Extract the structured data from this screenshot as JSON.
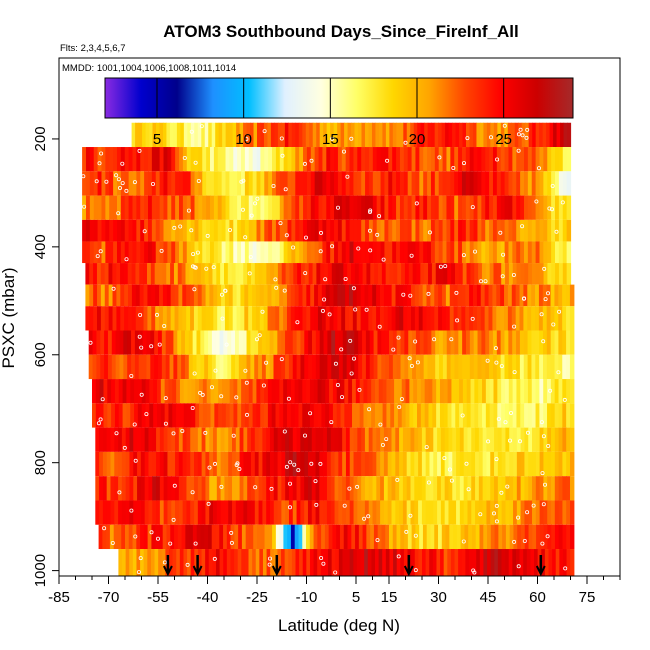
{
  "chart_data": {
    "type": "heatmap",
    "title": "ATOM3 Southbound Days_Since_FireInf_All",
    "flights_label": "Flts: 2,3,4,5,6,7",
    "mmdd_label": "MMDD: 1001,1004,1006,1008,1011,1014",
    "xlabel": "Latitude (deg N)",
    "ylabel": "PSXC (mbar)",
    "xlim": [
      -85,
      85
    ],
    "ylim": [
      1010,
      50
    ],
    "x_ticks": [
      -85,
      -70,
      -55,
      -40,
      -25,
      -10,
      5,
      15,
      30,
      45,
      60,
      75
    ],
    "y_ticks": [
      200,
      400,
      600,
      800,
      1000
    ],
    "colorbar": {
      "range": [
        2,
        29
      ],
      "ticks": [
        5,
        10,
        15,
        20,
        25
      ],
      "colors": [
        "#8a2be2",
        "#0000cd",
        "#00008b",
        "#1e90ff",
        "#00bfff",
        "#e0f0ff",
        "#ffffe0",
        "#ffff66",
        "#ffd700",
        "#ffa500",
        "#ff4500",
        "#ff0000",
        "#cc0000",
        "#a52a2a"
      ]
    },
    "arrows_latitude": [
      -52,
      -43,
      -19,
      21,
      61
    ],
    "layers": [
      {
        "p_top": 170,
        "p_bot": 215,
        "lat_min": -63,
        "lat_max": 70,
        "values": [
          20,
          18,
          17,
          16,
          19,
          21,
          23,
          24,
          22,
          20,
          21,
          22,
          21,
          23,
          24,
          25,
          22,
          21,
          22,
          24,
          27
        ]
      },
      {
        "p_top": 215,
        "p_bot": 260,
        "lat_min": -78,
        "lat_max": 70,
        "values": [
          23,
          25,
          24,
          26,
          19,
          17,
          15,
          14,
          18,
          22,
          24,
          23,
          25,
          24,
          23,
          22,
          24,
          25,
          23,
          22,
          18
        ]
      },
      {
        "p_top": 260,
        "p_bot": 305,
        "lat_min": -78,
        "lat_max": 70,
        "values": [
          24,
          22,
          21,
          25,
          23,
          18,
          17,
          19,
          22,
          25,
          26,
          24,
          23,
          25,
          22,
          24,
          26,
          24,
          22,
          21,
          14
        ]
      },
      {
        "p_top": 305,
        "p_bot": 350,
        "lat_min": -78,
        "lat_max": 70,
        "values": [
          20,
          22,
          24,
          23,
          22,
          21,
          17,
          16,
          20,
          24,
          25,
          26,
          25,
          23,
          24,
          23,
          22,
          24,
          25,
          20,
          18
        ]
      },
      {
        "p_top": 350,
        "p_bot": 390,
        "lat_min": -78,
        "lat_max": 70,
        "values": [
          24,
          26,
          24,
          22,
          20,
          19,
          18,
          21,
          23,
          25,
          26,
          24,
          22,
          23,
          22,
          23,
          24,
          22,
          21,
          20,
          19
        ]
      },
      {
        "p_top": 390,
        "p_bot": 430,
        "lat_min": -78,
        "lat_max": 70,
        "values": [
          22,
          24,
          25,
          23,
          20,
          18,
          16,
          15,
          17,
          21,
          24,
          26,
          25,
          24,
          25,
          23,
          22,
          20,
          21,
          22,
          17
        ]
      },
      {
        "p_top": 430,
        "p_bot": 470,
        "lat_min": -77,
        "lat_max": 70,
        "values": [
          24,
          25,
          23,
          22,
          21,
          19,
          17,
          18,
          22,
          24,
          25,
          26,
          24,
          23,
          24,
          25,
          23,
          22,
          21,
          20,
          19
        ]
      },
      {
        "p_top": 470,
        "p_bot": 510,
        "lat_min": -77,
        "lat_max": 71,
        "values": [
          21,
          23,
          25,
          24,
          22,
          20,
          18,
          19,
          21,
          24,
          26,
          27,
          25,
          24,
          23,
          22,
          24,
          23,
          22,
          21,
          20
        ]
      },
      {
        "p_top": 510,
        "p_bot": 555,
        "lat_min": -77,
        "lat_max": 71,
        "values": [
          25,
          24,
          23,
          21,
          19,
          17,
          18,
          20,
          23,
          25,
          26,
          25,
          24,
          26,
          25,
          24,
          23,
          22,
          21,
          20,
          19
        ]
      },
      {
        "p_top": 555,
        "p_bot": 600,
        "lat_min": -76,
        "lat_max": 71,
        "values": [
          23,
          26,
          25,
          22,
          18,
          14,
          16,
          19,
          22,
          25,
          27,
          26,
          24,
          23,
          22,
          21,
          22,
          21,
          20,
          19,
          18
        ]
      },
      {
        "p_top": 600,
        "p_bot": 645,
        "lat_min": -76,
        "lat_max": 71,
        "values": [
          24,
          22,
          24,
          23,
          20,
          17,
          19,
          21,
          24,
          26,
          27,
          25,
          23,
          22,
          20,
          19,
          20,
          19,
          18,
          17,
          16
        ]
      },
      {
        "p_top": 645,
        "p_bot": 690,
        "lat_min": -75,
        "lat_max": 71,
        "values": [
          25,
          26,
          24,
          22,
          21,
          20,
          22,
          23,
          25,
          26,
          25,
          24,
          23,
          22,
          21,
          20,
          19,
          18,
          17,
          16,
          18
        ]
      },
      {
        "p_top": 690,
        "p_bot": 735,
        "lat_min": -75,
        "lat_max": 71,
        "values": [
          23,
          24,
          26,
          25,
          24,
          22,
          23,
          24,
          26,
          25,
          24,
          23,
          22,
          20,
          19,
          18,
          18,
          17,
          17,
          17,
          19
        ]
      },
      {
        "p_top": 735,
        "p_bot": 780,
        "lat_min": -74,
        "lat_max": 71,
        "values": [
          24,
          26,
          25,
          23,
          22,
          21,
          23,
          25,
          26,
          27,
          25,
          23,
          21,
          20,
          19,
          18,
          18,
          17,
          18,
          18,
          20
        ]
      },
      {
        "p_top": 780,
        "p_bot": 825,
        "lat_min": -74,
        "lat_max": 71,
        "values": [
          22,
          24,
          25,
          24,
          23,
          22,
          24,
          25,
          27,
          26,
          24,
          22,
          21,
          19,
          18,
          17,
          18,
          18,
          19,
          19,
          20
        ]
      },
      {
        "p_top": 825,
        "p_bot": 870,
        "lat_min": -74,
        "lat_max": 71,
        "values": [
          23,
          24,
          26,
          25,
          22,
          20,
          22,
          24,
          25,
          26,
          23,
          21,
          20,
          19,
          19,
          18,
          18,
          19,
          20,
          21,
          22
        ]
      },
      {
        "p_top": 870,
        "p_bot": 915,
        "lat_min": -74,
        "lat_max": 71,
        "values": [
          24,
          25,
          23,
          22,
          24,
          26,
          25,
          24,
          23,
          25,
          24,
          22,
          20,
          19,
          18,
          18,
          19,
          20,
          21,
          22,
          23
        ]
      },
      {
        "p_top": 915,
        "p_bot": 960,
        "lat_min": -73,
        "lat_max": 71,
        "values": [
          22,
          23,
          24,
          25,
          26,
          24,
          22,
          21,
          6,
          23,
          25,
          24,
          21,
          19,
          18,
          19,
          20,
          21,
          22,
          23,
          24
        ]
      },
      {
        "p_top": 960,
        "p_bot": 1010,
        "lat_min": -67,
        "lat_max": 71,
        "values": [
          20,
          21,
          23,
          24,
          25,
          24,
          22,
          23,
          24,
          25,
          26,
          27,
          26,
          25,
          24,
          23,
          26,
          27,
          26,
          25,
          24
        ]
      }
    ]
  }
}
